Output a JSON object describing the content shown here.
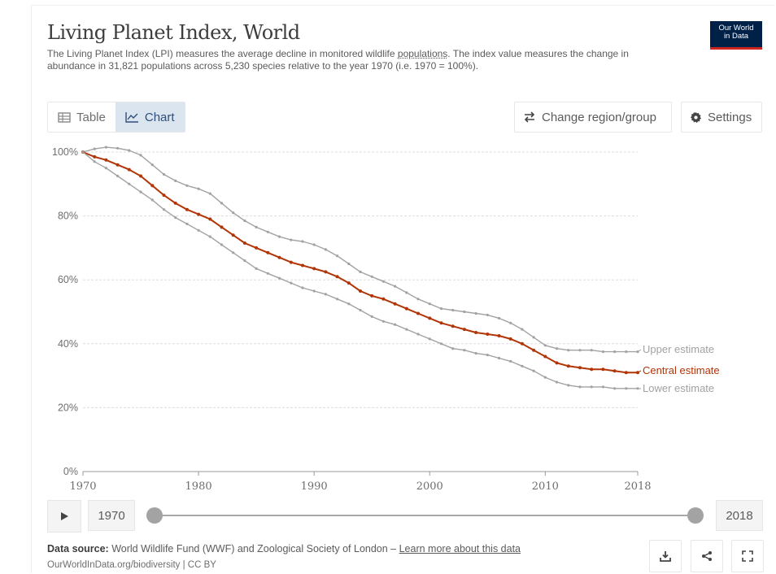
{
  "header": {
    "title": "Living Planet Index, World",
    "subtitle_a": "The Living Planet Index (LPI) measures the average decline in monitored wildlife ",
    "subtitle_link": "populations",
    "subtitle_b": ". The index value measures the change in abundance in 31,821 populations across 5,230 species relative to the year 1970 (i.e. 1970 = 100%).",
    "logo_line1": "Our World",
    "logo_line2": "in Data"
  },
  "tabs": [
    {
      "label": "Table",
      "icon": "table-icon",
      "active": false
    },
    {
      "label": "Chart",
      "icon": "line-chart-icon",
      "active": true
    }
  ],
  "buttons": {
    "region": "Change region/group",
    "settings": "Settings"
  },
  "timeline": {
    "start": "1970",
    "end": "2018"
  },
  "footer": {
    "source_label": "Data source:",
    "source_text": " World Wildlife Fund (WWF) and Zoological Society of London – ",
    "source_link": "Learn more about this data",
    "url": "OurWorldInData.org/biodiversity | CC BY"
  },
  "colors": {
    "central": "#b13507",
    "bounds": "#a2a2a2",
    "grid": "#dddddd",
    "logo_bg": "#002147",
    "logo_accent": "#ce261e"
  },
  "chart_data": {
    "type": "line",
    "title": "Living Planet Index, World",
    "xlabel": "",
    "ylabel": "",
    "xlim": [
      1970,
      2018
    ],
    "ylim": [
      0,
      100
    ],
    "x_ticks": [
      1970,
      1980,
      1990,
      2000,
      2010,
      2018
    ],
    "y_ticks": [
      "0%",
      "20%",
      "40%",
      "60%",
      "80%",
      "100%"
    ],
    "x": [
      1970,
      1971,
      1972,
      1973,
      1974,
      1975,
      1976,
      1977,
      1978,
      1979,
      1980,
      1981,
      1982,
      1983,
      1984,
      1985,
      1986,
      1987,
      1988,
      1989,
      1990,
      1991,
      1992,
      1993,
      1994,
      1995,
      1996,
      1997,
      1998,
      1999,
      2000,
      2001,
      2002,
      2003,
      2004,
      2005,
      2006,
      2007,
      2008,
      2009,
      2010,
      2011,
      2012,
      2013,
      2014,
      2015,
      2016,
      2017,
      2018
    ],
    "series": [
      {
        "name": "Upper estimate",
        "values": [
          100,
          101,
          101.5,
          101.2,
          100.5,
          99,
          96,
          93,
          91,
          89.5,
          88.5,
          87,
          84,
          81,
          78.5,
          76.5,
          75,
          73.5,
          72.5,
          72,
          71,
          69.5,
          67.5,
          65,
          62.5,
          61,
          59.5,
          58,
          56,
          54,
          52.5,
          51,
          50.5,
          50,
          49.5,
          49,
          48,
          46.5,
          44.5,
          42,
          39.5,
          38.5,
          38,
          38,
          38,
          37.5,
          37.5,
          37.5,
          37.5
        ]
      },
      {
        "name": "Central estimate",
        "values": [
          100,
          98.5,
          97.5,
          96,
          94.5,
          92.5,
          89.5,
          86.5,
          84,
          82,
          80.5,
          79,
          76.5,
          74,
          71.5,
          70,
          68.5,
          67,
          65.5,
          64.5,
          63.5,
          62.5,
          61,
          59,
          56.5,
          55,
          54,
          52.5,
          51,
          49.5,
          48,
          46.5,
          45.5,
          44.5,
          43.5,
          43,
          42.5,
          41.5,
          40,
          38,
          36,
          34,
          33,
          32.5,
          32,
          32,
          31.5,
          31,
          31
        ]
      },
      {
        "name": "Lower estimate",
        "values": [
          100,
          97,
          95,
          92.5,
          90,
          87.5,
          85,
          82,
          79.5,
          77.5,
          75.5,
          73.5,
          71,
          68.5,
          66,
          63.5,
          62,
          60.5,
          59,
          57.5,
          56.5,
          55.5,
          54,
          52.5,
          50.5,
          48.5,
          47,
          46,
          44.5,
          43,
          41.5,
          40,
          38.5,
          38,
          37,
          36.5,
          35.5,
          34.5,
          33,
          31.5,
          29.5,
          28,
          27,
          26.5,
          26.5,
          26.5,
          26,
          26,
          26
        ]
      }
    ]
  }
}
